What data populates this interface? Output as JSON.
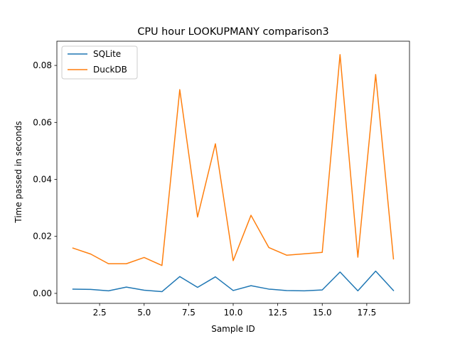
{
  "chart_data": {
    "type": "line",
    "title": "CPU hour LOOKUPMANY comparison3",
    "xlabel": "Sample ID",
    "ylabel": "Time passed in seconds",
    "xlim": [
      0.1,
      19.9
    ],
    "ylim": [
      -0.0035,
      0.0885
    ],
    "xticks": [
      2.5,
      5.0,
      7.5,
      10.0,
      12.5,
      15.0,
      17.5
    ],
    "xtick_labels": [
      "2.5",
      "5.0",
      "7.5",
      "10.0",
      "12.5",
      "15.0",
      "17.5"
    ],
    "yticks": [
      0.0,
      0.02,
      0.04,
      0.06,
      0.08
    ],
    "ytick_labels": [
      "0.00",
      "0.02",
      "0.04",
      "0.06",
      "0.08"
    ],
    "grid": false,
    "legend_position": "upper-left",
    "x": [
      1,
      2,
      3,
      4,
      5,
      6,
      7,
      8,
      9,
      10,
      11,
      12,
      13,
      14,
      15,
      16,
      17,
      18,
      19
    ],
    "series": [
      {
        "name": "SQLite",
        "color": "#1f77b4",
        "values": [
          0.0015,
          0.0014,
          0.0009,
          0.0022,
          0.0011,
          0.0006,
          0.0059,
          0.0021,
          0.0058,
          0.001,
          0.0027,
          0.0015,
          0.001,
          0.0009,
          0.0012,
          0.0075,
          0.0009,
          0.0078,
          0.001
        ]
      },
      {
        "name": "DuckDB",
        "color": "#ff7f0e",
        "values": [
          0.0159,
          0.0138,
          0.0104,
          0.0104,
          0.0126,
          0.0098,
          0.0715,
          0.0268,
          0.0525,
          0.0115,
          0.0274,
          0.0161,
          0.0134,
          0.0139,
          0.0144,
          0.0838,
          0.0127,
          0.0768,
          0.0121
        ]
      }
    ]
  }
}
